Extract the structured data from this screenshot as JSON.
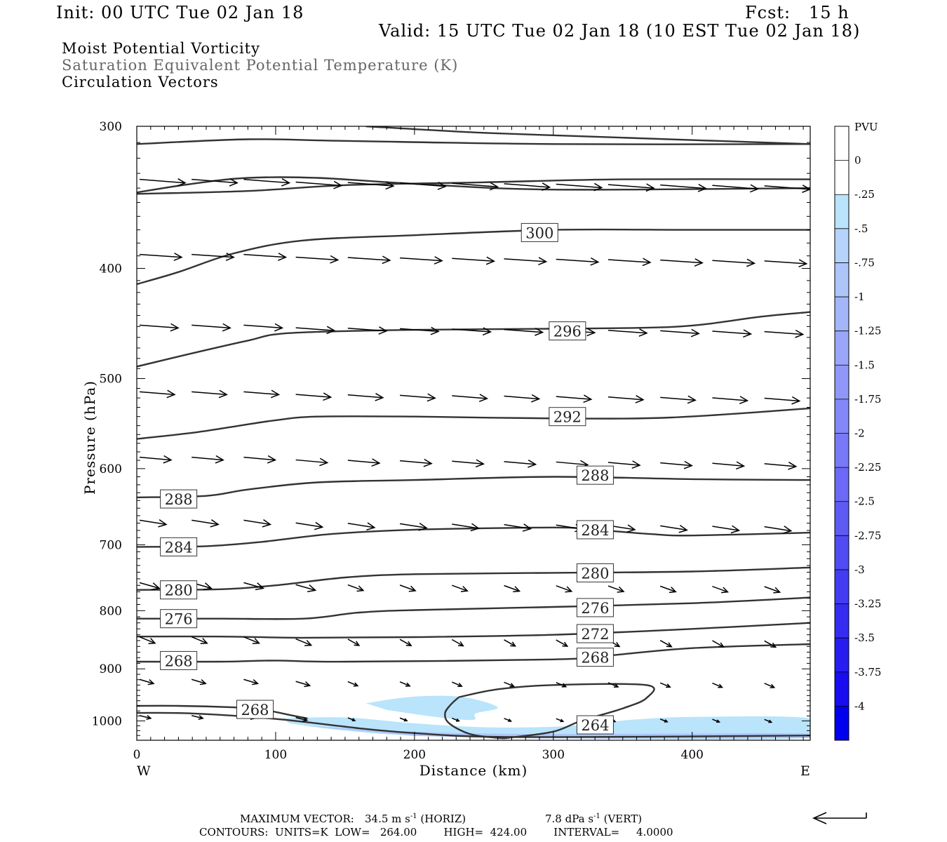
{
  "header": {
    "init": "Init: 00 UTC Tue 02 Jan 18",
    "fcst": "Fcst:   15 h",
    "valid": "Valid: 15 UTC Tue 02 Jan 18 (10 EST Tue 02 Jan 18)",
    "field1": "Moist Potential Vorticity",
    "field2": "Saturation Equivalent Potential Temperature (K)",
    "field3": "Circulation Vectors"
  },
  "footer": {
    "maxvec_label": "MAXIMUM VECTOR:",
    "maxvec_horiz": "34.5 m s",
    "maxvec_horiz_unit": "(HORIZ)",
    "maxvec_vert": "7.8 dPa s",
    "maxvec_vert_unit": "(VERT)",
    "contours": "CONTOURS:  UNITS=K  LOW=   264.00        HIGH=  424.00        INTERVAL=     4.0000"
  },
  "chart_data": {
    "type": "cross-section",
    "xlabel": "Distance (km)",
    "ylabel": "Pressure (hPa)",
    "x_range": [
      0,
      485
    ],
    "y_range": [
      300,
      1040
    ],
    "y_log": true,
    "x_ticks": [
      0,
      100,
      200,
      300,
      400
    ],
    "y_ticks": [
      300,
      400,
      500,
      600,
      700,
      800,
      900,
      1000
    ],
    "x_end_labels": {
      "left": "W",
      "right": "E"
    },
    "colorbar": {
      "title": "PVU",
      "labels": [
        "0",
        "-.25",
        "-.5",
        "-.75",
        "-1",
        "-1.25",
        "-1.5",
        "-1.75",
        "-2",
        "-2.25",
        "-2.5",
        "-2.75",
        "-3",
        "-3.25",
        "-3.5",
        "-3.75",
        "-4"
      ],
      "colors": [
        "#ffffff",
        "#ffffff",
        "#b9e4fb",
        "#b6d4fb",
        "#aec5fa",
        "#a4b6fa",
        "#9aa6f9",
        "#8f97f8",
        "#8487f7",
        "#7879f6",
        "#6b69f5",
        "#5e5af4",
        "#514bf3",
        "#433cf2",
        "#352cf1",
        "#271df0",
        "#170df0",
        "#0000ee"
      ]
    },
    "isentropes": [
      {
        "label": "",
        "points": [
          [
            0,
            311
          ],
          [
            80,
            308
          ],
          [
            150,
            309
          ],
          [
            300,
            311
          ],
          [
            485,
            311
          ]
        ]
      },
      {
        "label": "",
        "points": [
          [
            165,
            300
          ],
          [
            250,
            304
          ],
          [
            350,
            307
          ],
          [
            485,
            311
          ]
        ]
      },
      {
        "label": "",
        "points": [
          [
            0,
            343
          ],
          [
            40,
            337
          ],
          [
            80,
            333
          ],
          [
            130,
            333
          ],
          [
            200,
            337
          ],
          [
            300,
            341
          ],
          [
            485,
            340
          ]
        ]
      },
      {
        "label": "",
        "points": [
          [
            0,
            344
          ],
          [
            80,
            342
          ],
          [
            150,
            338
          ],
          [
            250,
            336
          ],
          [
            350,
            334
          ],
          [
            485,
            334
          ]
        ]
      },
      {
        "label": "300",
        "label_at": [
          278,
          372
        ],
        "points": [
          [
            0,
            413
          ],
          [
            30,
            403
          ],
          [
            70,
            388
          ],
          [
            120,
            378
          ],
          [
            200,
            374
          ],
          [
            300,
            370
          ],
          [
            400,
            370
          ],
          [
            485,
            370
          ]
        ]
      },
      {
        "label": "296",
        "label_at": [
          298,
          454
        ],
        "points": [
          [
            0,
            488
          ],
          [
            40,
            475
          ],
          [
            80,
            463
          ],
          [
            110,
            456
          ],
          [
            200,
            453
          ],
          [
            300,
            452
          ],
          [
            390,
            450
          ],
          [
            450,
            441
          ],
          [
            485,
            437
          ]
        ]
      },
      {
        "label": "292",
        "label_at": [
          298,
          540
        ],
        "points": [
          [
            0,
            565
          ],
          [
            40,
            558
          ],
          [
            70,
            551
          ],
          [
            100,
            544
          ],
          [
            130,
            540
          ],
          [
            200,
            540
          ],
          [
            300,
            542
          ],
          [
            385,
            541
          ],
          [
            485,
            531
          ]
        ]
      },
      {
        "label": "288",
        "label_at": [
          318,
          608
        ],
        "points": [
          [
            0,
            636
          ],
          [
            50,
            634
          ],
          [
            80,
            626
          ],
          [
            130,
            617
          ],
          [
            200,
            614
          ],
          [
            300,
            610
          ],
          [
            400,
            613
          ],
          [
            485,
            614
          ]
        ]
      },
      {
        "label": "288",
        "label_at": [
          18,
          638
        ],
        "points": []
      },
      {
        "label": "284",
        "label_at": [
          318,
          679
        ],
        "points": [
          [
            0,
            703
          ],
          [
            50,
            702
          ],
          [
            90,
            696
          ],
          [
            140,
            685
          ],
          [
            200,
            679
          ],
          [
            300,
            676
          ],
          [
            330,
            679
          ],
          [
            370,
            685
          ],
          [
            400,
            687
          ],
          [
            485,
            683
          ]
        ]
      },
      {
        "label": "284",
        "label_at": [
          18,
          703
        ],
        "points": []
      },
      {
        "label": "280",
        "label_at": [
          318,
          741
        ],
        "points": [
          [
            0,
            767
          ],
          [
            60,
            766
          ],
          [
            100,
            760
          ],
          [
            150,
            748
          ],
          [
            200,
            743
          ],
          [
            300,
            741
          ],
          [
            400,
            739
          ],
          [
            485,
            733
          ]
        ]
      },
      {
        "label": "280",
        "label_at": [
          18,
          767
        ],
        "points": []
      },
      {
        "label": "276",
        "label_at": [
          318,
          795
        ],
        "points": [
          [
            0,
            813
          ],
          [
            60,
            813
          ],
          [
            120,
            813
          ],
          [
            160,
            803
          ],
          [
            200,
            799
          ],
          [
            300,
            794
          ],
          [
            400,
            788
          ],
          [
            485,
            779
          ]
        ]
      },
      {
        "label": "276",
        "label_at": [
          18,
          813
        ],
        "points": []
      },
      {
        "label": "272",
        "label_at": [
          318,
          838
        ],
        "points": [
          [
            0,
            843
          ],
          [
            60,
            843
          ],
          [
            120,
            845
          ],
          [
            200,
            844
          ],
          [
            300,
            840
          ],
          [
            400,
            830
          ],
          [
            485,
            820
          ]
        ]
      },
      {
        "label": "268",
        "label_at": [
          318,
          879
        ],
        "points": [
          [
            0,
            887
          ],
          [
            60,
            887
          ],
          [
            100,
            885
          ],
          [
            150,
            887
          ],
          [
            300,
            883
          ],
          [
            340,
            876
          ],
          [
            400,
            863
          ],
          [
            485,
            856
          ]
        ]
      },
      {
        "label": "268",
        "label_at": [
          18,
          885
        ],
        "points": []
      },
      {
        "label": "268",
        "label_at": [
          73,
          977
        ],
        "points": [
          [
            0,
            970
          ],
          [
            30,
            970
          ],
          [
            70,
            973
          ],
          [
            90,
            977
          ],
          [
            110,
            988
          ],
          [
            123,
            995
          ]
        ]
      },
      {
        "label": "",
        "points": [
          [
            0,
            984
          ],
          [
            40,
            985
          ],
          [
            100,
            996
          ],
          [
            160,
            1015
          ],
          [
            200,
            1025
          ],
          [
            260,
            1033
          ],
          [
            400,
            1032
          ],
          [
            485,
            1030
          ]
        ]
      },
      {
        "label": "264",
        "label_at": [
          318,
          1008
        ],
        "points": [
          [
            232,
            953
          ],
          [
            260,
            938
          ],
          [
            300,
            930
          ],
          [
            367,
            930
          ],
          [
            367,
            955
          ],
          [
            350,
            975
          ],
          [
            320,
            1000
          ],
          [
            300,
            1022
          ],
          [
            270,
            1034
          ],
          [
            260,
            1035
          ],
          [
            240,
            1027
          ],
          [
            225,
            1005
          ],
          [
            222,
            985
          ],
          [
            226,
            968
          ],
          [
            232,
            953
          ]
        ]
      }
    ],
    "pv_areas": [
      {
        "value_range": "-0.25 to -0.5",
        "points": [
          [
            165,
            965
          ],
          [
            200,
            952
          ],
          [
            235,
            953
          ],
          [
            260,
            973
          ],
          [
            244,
            985
          ],
          [
            242,
            998
          ],
          [
            215,
            992
          ],
          [
            180,
            978
          ]
        ]
      },
      {
        "value_range": "-0.25 to -0.5",
        "points": [
          [
            105,
            995
          ],
          [
            150,
            993
          ],
          [
            200,
            1005
          ],
          [
            250,
            1013
          ],
          [
            300,
            1012
          ],
          [
            330,
            1005
          ],
          [
            360,
            997
          ],
          [
            400,
            992
          ],
          [
            485,
            995
          ],
          [
            485,
            1035
          ],
          [
            300,
            1036
          ],
          [
            200,
            1030
          ],
          [
            150,
            1020
          ],
          [
            110,
            1005
          ]
        ]
      },
      {
        "value_range": "-0.5 to -1",
        "points": [
          [
            120,
            1010
          ],
          [
            170,
            1018
          ],
          [
            230,
            1025
          ],
          [
            300,
            1027
          ],
          [
            400,
            1026
          ],
          [
            485,
            1026
          ],
          [
            485,
            1035
          ],
          [
            300,
            1036
          ],
          [
            200,
            1031
          ]
        ]
      }
    ],
    "vector_field": {
      "rows_p": [
        335,
        338,
        390,
        393,
        450,
        452,
        513,
        517,
        586,
        590,
        665,
        670,
        757,
        760,
        845,
        848,
        920,
        925,
        985,
        990
      ],
      "note": "vectors drawn along rows; horizontal component eastward decreasing toward surface, with downward (increasing pressure) component below 700 hPa"
    }
  }
}
